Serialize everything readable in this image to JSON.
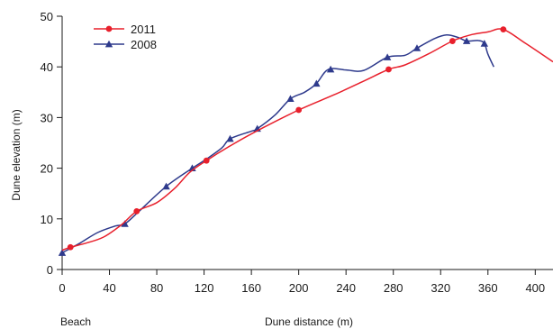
{
  "chart_data": {
    "type": "line",
    "xlabel": "Dune distance (m)",
    "ylabel": "Dune elevation (m)",
    "beach_label": "Beach",
    "xlim": [
      0,
      415
    ],
    "ylim": [
      0,
      50
    ],
    "x_ticks": [
      0,
      40,
      80,
      120,
      160,
      200,
      240,
      280,
      320,
      360,
      400
    ],
    "y_ticks": [
      0,
      10,
      20,
      30,
      40,
      50
    ],
    "grid": false,
    "legend_position": "top-left",
    "series": [
      {
        "name": "2011",
        "color": "#e8202c",
        "marker": "circle",
        "line_points": [
          [
            0,
            3.8
          ],
          [
            7,
            4.4
          ],
          [
            20,
            5.2
          ],
          [
            35,
            6.4
          ],
          [
            50,
            8.8
          ],
          [
            63,
            11.5
          ],
          [
            80,
            13.2
          ],
          [
            95,
            16
          ],
          [
            108,
            19.2
          ],
          [
            122,
            21.5
          ],
          [
            145,
            24.8
          ],
          [
            170,
            28
          ],
          [
            200,
            31.5
          ],
          [
            230,
            34.5
          ],
          [
            255,
            37.2
          ],
          [
            276,
            39.5
          ],
          [
            290,
            40.4
          ],
          [
            310,
            42.6
          ],
          [
            330,
            45.1
          ],
          [
            345,
            46.3
          ],
          [
            360,
            46.9
          ],
          [
            373,
            47.4
          ],
          [
            392,
            44.6
          ],
          [
            415,
            41
          ]
        ],
        "markers": [
          [
            7,
            4.4
          ],
          [
            63,
            11.5
          ],
          [
            122,
            21.5
          ],
          [
            200,
            31.5
          ],
          [
            276,
            39.5
          ],
          [
            330,
            45.1
          ],
          [
            373,
            47.4
          ]
        ]
      },
      {
        "name": "2008",
        "color": "#2e3a8c",
        "marker": "triangle",
        "line_points": [
          [
            0,
            3.3
          ],
          [
            15,
            5.2
          ],
          [
            30,
            7.3
          ],
          [
            45,
            8.6
          ],
          [
            53,
            9
          ],
          [
            65,
            11.5
          ],
          [
            88,
            16.4
          ],
          [
            110,
            20
          ],
          [
            122,
            21.8
          ],
          [
            135,
            24
          ],
          [
            142,
            25.8
          ],
          [
            160,
            27.3
          ],
          [
            165,
            27.8
          ],
          [
            180,
            30.5
          ],
          [
            193,
            33.7
          ],
          [
            205,
            35
          ],
          [
            215,
            36.7
          ],
          [
            225,
            39.5
          ],
          [
            240,
            39.4
          ],
          [
            255,
            39.3
          ],
          [
            275,
            41.9
          ],
          [
            290,
            42.3
          ],
          [
            300,
            43.7
          ],
          [
            315,
            45.6
          ],
          [
            325,
            46.3
          ],
          [
            335,
            45.8
          ],
          [
            342,
            45.1
          ],
          [
            352,
            45.2
          ],
          [
            357,
            44.6
          ],
          [
            360,
            42.5
          ],
          [
            365,
            40
          ]
        ],
        "markers": [
          [
            0,
            3.3
          ],
          [
            53,
            9
          ],
          [
            88,
            16.4
          ],
          [
            110,
            20
          ],
          [
            142,
            25.8
          ],
          [
            165,
            27.8
          ],
          [
            193,
            33.7
          ],
          [
            215,
            36.7
          ],
          [
            227,
            39.5
          ],
          [
            275,
            41.9
          ],
          [
            300,
            43.7
          ],
          [
            342,
            45.1
          ],
          [
            357,
            44.6
          ]
        ]
      }
    ]
  }
}
